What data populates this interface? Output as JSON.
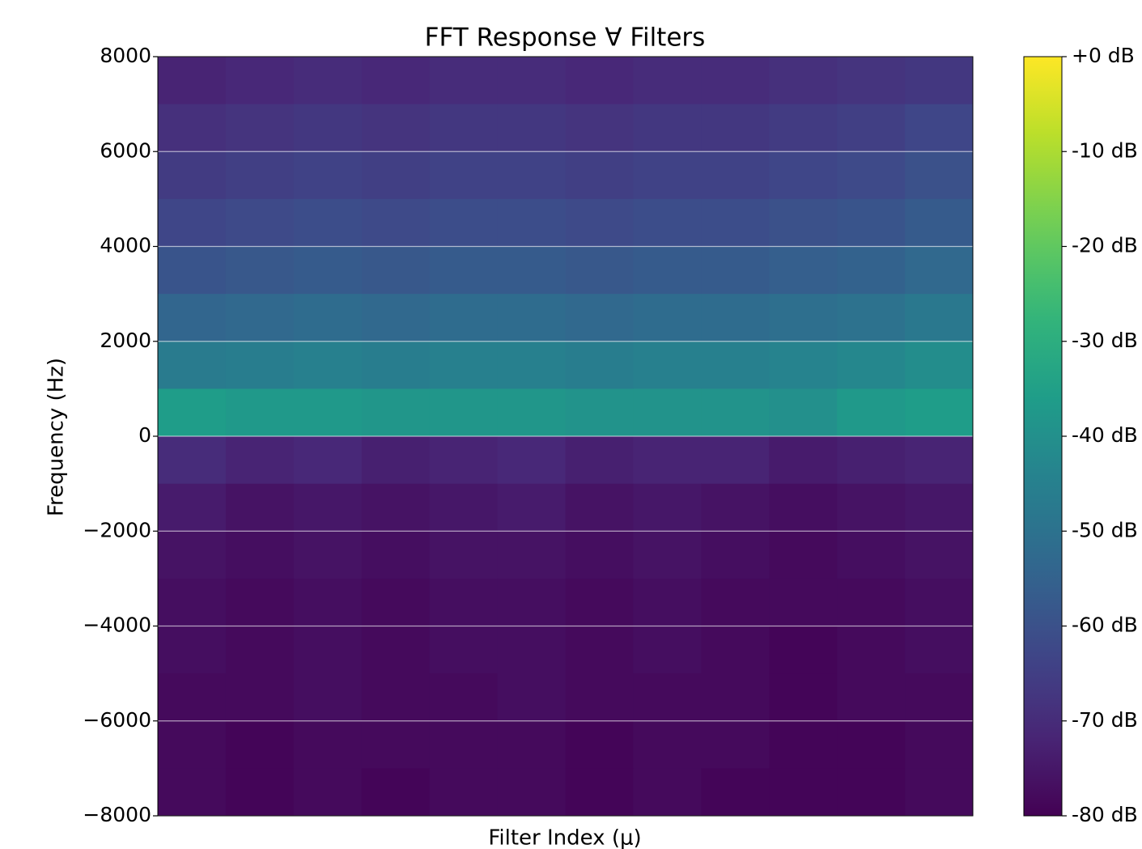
{
  "chart_data": {
    "type": "heatmap",
    "title": "FFT Response ∀ Filters",
    "x_label": "Filter Index (μ)",
    "y_label": "Frequency (Hz)",
    "ylim": [
      -8000,
      8000
    ],
    "yticks": [
      {
        "value": -8000,
        "label": "−8000"
      },
      {
        "value": -6000,
        "label": "−6000"
      },
      {
        "value": -4000,
        "label": "−4000"
      },
      {
        "value": -2000,
        "label": "−2000"
      },
      0,
      2000,
      4000,
      6000,
      8000
    ],
    "grid": true,
    "colormap": "viridis",
    "clim": [
      -80,
      0
    ],
    "cticks": [
      {
        "value": 0,
        "label": "+0 dB"
      },
      {
        "value": -10,
        "label": "-10 dB"
      },
      {
        "value": -20,
        "label": "-20 dB"
      },
      {
        "value": -30,
        "label": "-30 dB"
      },
      {
        "value": -40,
        "label": "-40 dB"
      },
      {
        "value": -50,
        "label": "-50 dB"
      },
      {
        "value": -60,
        "label": "-60 dB"
      },
      {
        "value": -70,
        "label": "-70 dB"
      },
      {
        "value": -80,
        "label": "-80 dB"
      }
    ],
    "ybins": [
      8000,
      7000,
      6000,
      5000,
      4000,
      3000,
      2000,
      1000,
      0,
      -1000,
      -2000,
      -3000,
      -4000,
      -5000,
      -6000,
      -7000,
      -8000
    ],
    "z": [
      [
        -72,
        -71,
        -70,
        -71,
        -70,
        -70,
        -71,
        -70,
        -70,
        -69,
        -68,
        -67
      ],
      [
        -69,
        -68,
        -67,
        -68,
        -67,
        -67,
        -68,
        -67,
        -67,
        -66,
        -65,
        -63
      ],
      [
        -66,
        -65,
        -64,
        -65,
        -64,
        -64,
        -65,
        -64,
        -64,
        -63,
        -62,
        -60
      ],
      [
        -63,
        -62,
        -61,
        -62,
        -61,
        -61,
        -62,
        -61,
        -61,
        -60,
        -59,
        -57
      ],
      [
        -59,
        -58,
        -57,
        -58,
        -57,
        -57,
        -58,
        -57,
        -57,
        -56,
        -55,
        -53
      ],
      [
        -54,
        -53,
        -52,
        -53,
        -52,
        -52,
        -53,
        -52,
        -52,
        -51,
        -50,
        -48
      ],
      [
        -47,
        -46,
        -45,
        -46,
        -45,
        -45,
        -46,
        -45,
        -45,
        -44,
        -43,
        -41
      ],
      [
        -36,
        -37,
        -37,
        -38,
        -38,
        -38,
        -39,
        -39,
        -39,
        -40,
        -37,
        -36
      ],
      [
        -70,
        -72,
        -71,
        -73,
        -72,
        -71,
        -73,
        -72,
        -72,
        -74,
        -73,
        -72
      ],
      [
        -74,
        -76,
        -75,
        -76,
        -75,
        -74,
        -76,
        -75,
        -76,
        -77,
        -76,
        -75
      ],
      [
        -76,
        -77,
        -76,
        -77,
        -76,
        -76,
        -77,
        -76,
        -77,
        -78,
        -77,
        -76
      ],
      [
        -77,
        -78,
        -77,
        -78,
        -77,
        -77,
        -78,
        -77,
        -78,
        -78,
        -78,
        -77
      ],
      [
        -77,
        -78,
        -77,
        -78,
        -77,
        -77,
        -78,
        -77,
        -78,
        -79,
        -78,
        -77
      ],
      [
        -78,
        -78,
        -77,
        -78,
        -78,
        -77,
        -78,
        -78,
        -78,
        -79,
        -78,
        -78
      ],
      [
        -78,
        -79,
        -78,
        -78,
        -78,
        -78,
        -79,
        -78,
        -78,
        -79,
        -79,
        -78
      ],
      [
        -78,
        -79,
        -78,
        -79,
        -78,
        -78,
        -79,
        -78,
        -79,
        -79,
        -79,
        -78
      ]
    ]
  }
}
